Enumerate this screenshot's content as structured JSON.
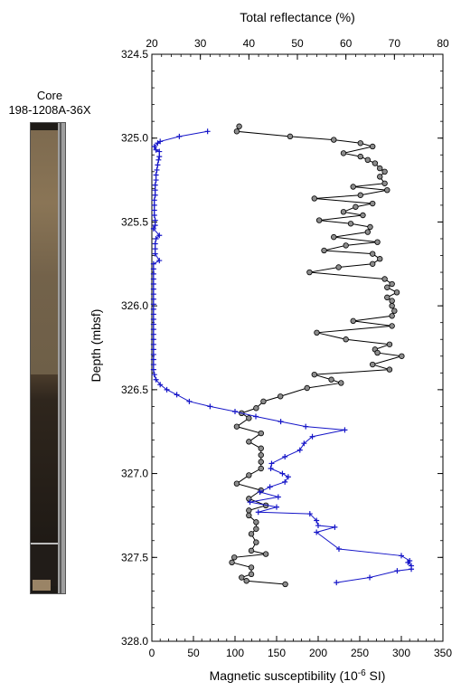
{
  "core": {
    "label_line1": "Core",
    "label_line2": "198-1208A-36X"
  },
  "chart_data": [
    {
      "type": "scatter",
      "title": "",
      "x_top_label": "Total reflectance (%)",
      "x_bottom_label": "Magnetic susceptibility (10⁻⁶ SI)",
      "ylabel": "Depth (mbsf)",
      "ylim": [
        324.5,
        328.0
      ],
      "y_inverted": true,
      "y_ticks": [
        "324.5",
        "325.0",
        "325.5",
        "326.0",
        "326.5",
        "327.0",
        "327.5",
        "328.0"
      ],
      "x_top_lim": [
        20,
        80
      ],
      "x_top_ticks": [
        "20",
        "30",
        "40",
        "50",
        "60",
        "70",
        "80"
      ],
      "x_bottom_lim": [
        0,
        350
      ],
      "x_bottom_ticks": [
        "0",
        "50",
        "100",
        "150",
        "200",
        "250",
        "300",
        "350"
      ],
      "grid": false,
      "series": [
        {
          "axis": "top",
          "marker": "circle",
          "color": "#000000",
          "marker_fill": "#8c8c8c",
          "points": [
            [
              38.0,
              324.93
            ],
            [
              37.5,
              324.96
            ],
            [
              48.5,
              324.99
            ],
            [
              57.5,
              325.01
            ],
            [
              63,
              325.03
            ],
            [
              65.5,
              325.05
            ],
            [
              59.5,
              325.09
            ],
            [
              63,
              325.11
            ],
            [
              64.5,
              325.13
            ],
            [
              66,
              325.15
            ],
            [
              67,
              325.18
            ],
            [
              68,
              325.2
            ],
            [
              67,
              325.23
            ],
            [
              68,
              325.27
            ],
            [
              61.5,
              325.29
            ],
            [
              68.5,
              325.31
            ],
            [
              63,
              325.34
            ],
            [
              53.5,
              325.36
            ],
            [
              65.5,
              325.39
            ],
            [
              62,
              325.41
            ],
            [
              59.5,
              325.44
            ],
            [
              63.5,
              325.46
            ],
            [
              54.5,
              325.49
            ],
            [
              61,
              325.51
            ],
            [
              65,
              325.53
            ],
            [
              64.5,
              325.56
            ],
            [
              57.5,
              325.59
            ],
            [
              66.5,
              325.62
            ],
            [
              60,
              325.64
            ],
            [
              55.5,
              325.67
            ],
            [
              65.5,
              325.69
            ],
            [
              67,
              325.72
            ],
            [
              65.5,
              325.75
            ],
            [
              58.5,
              325.77
            ],
            [
              52.5,
              325.8
            ],
            [
              68,
              325.84
            ],
            [
              69.5,
              325.87
            ],
            [
              68.5,
              325.89
            ],
            [
              70.5,
              325.92
            ],
            [
              68.5,
              325.95
            ],
            [
              69.5,
              325.97
            ],
            [
              69.5,
              326.0
            ],
            [
              70,
              326.03
            ],
            [
              69.5,
              326.06
            ],
            [
              61.5,
              326.09
            ],
            [
              69.5,
              326.12
            ],
            [
              54,
              326.16
            ],
            [
              60,
              326.2
            ],
            [
              69,
              326.23
            ],
            [
              66,
              326.26
            ],
            [
              66.5,
              326.28
            ],
            [
              71.5,
              326.3
            ],
            [
              65.5,
              326.35
            ],
            [
              69,
              326.38
            ],
            [
              53.5,
              326.41
            ],
            [
              57,
              326.44
            ],
            [
              59,
              326.46
            ],
            [
              52,
              326.49
            ],
            [
              46.5,
              326.54
            ],
            [
              43,
              326.57
            ],
            [
              41.5,
              326.61
            ],
            [
              38.5,
              326.64
            ],
            [
              40,
              326.67
            ],
            [
              37.5,
              326.72
            ],
            [
              42.5,
              326.76
            ],
            [
              40,
              326.81
            ],
            [
              42.5,
              326.85
            ],
            [
              42.5,
              326.89
            ],
            [
              42.5,
              326.93
            ],
            [
              42.5,
              326.97
            ],
            [
              40,
              327.01
            ],
            [
              37.5,
              327.06
            ],
            [
              42.5,
              327.1
            ],
            [
              40,
              327.15
            ],
            [
              43.5,
              327.19
            ],
            [
              40,
              327.22
            ],
            [
              40,
              327.25
            ],
            [
              41.5,
              327.29
            ],
            [
              41.5,
              327.33
            ],
            [
              40.5,
              327.36
            ],
            [
              41.5,
              327.41
            ],
            [
              40.5,
              327.46
            ],
            [
              43.5,
              327.48
            ],
            [
              37,
              327.5
            ],
            [
              36.5,
              327.53
            ],
            [
              40.5,
              327.56
            ],
            [
              40.5,
              327.6
            ],
            [
              38.5,
              327.62
            ],
            [
              39.5,
              327.64
            ],
            [
              47.5,
              327.66
            ]
          ]
        },
        {
          "axis": "bottom",
          "marker": "plus",
          "color": "#1515c8",
          "points": [
            [
              67,
              324.96
            ],
            [
              33,
              324.99
            ],
            [
              10,
              325.02
            ],
            [
              7,
              325.03
            ],
            [
              3,
              325.05
            ],
            [
              5,
              325.07
            ],
            [
              9,
              325.08
            ],
            [
              9,
              325.11
            ],
            [
              8,
              325.13
            ],
            [
              7,
              325.16
            ],
            [
              6,
              325.19
            ],
            [
              5,
              325.22
            ],
            [
              5,
              325.25
            ],
            [
              4,
              325.28
            ],
            [
              4,
              325.31
            ],
            [
              4,
              325.34
            ],
            [
              3,
              325.37
            ],
            [
              3,
              325.4
            ],
            [
              3,
              325.43
            ],
            [
              3,
              325.46
            ],
            [
              4,
              325.49
            ],
            [
              4,
              325.52
            ],
            [
              2,
              325.54
            ],
            [
              9,
              325.58
            ],
            [
              5,
              325.6
            ],
            [
              4,
              325.63
            ],
            [
              4,
              325.66
            ],
            [
              4,
              325.69
            ],
            [
              9,
              325.73
            ],
            [
              2,
              325.75
            ],
            [
              2,
              325.78
            ],
            [
              2,
              325.81
            ],
            [
              2,
              325.84
            ],
            [
              2,
              325.87
            ],
            [
              2,
              325.9
            ],
            [
              2,
              325.93
            ],
            [
              2,
              325.96
            ],
            [
              2,
              325.99
            ],
            [
              2,
              326.02
            ],
            [
              2,
              326.05
            ],
            [
              2,
              326.08
            ],
            [
              2,
              326.11
            ],
            [
              2,
              326.14
            ],
            [
              2,
              326.17
            ],
            [
              2,
              326.2
            ],
            [
              2,
              326.23
            ],
            [
              2,
              326.26
            ],
            [
              2,
              326.29
            ],
            [
              2,
              326.32
            ],
            [
              2,
              326.35
            ],
            [
              2,
              326.38
            ],
            [
              3,
              326.41
            ],
            [
              5,
              326.44
            ],
            [
              10,
              326.47
            ],
            [
              18,
              326.5
            ],
            [
              30,
              326.53
            ],
            [
              45,
              326.57
            ],
            [
              70,
              326.6
            ],
            [
              100,
              326.63
            ],
            [
              125,
              326.66
            ],
            [
              155,
              326.69
            ],
            [
              185,
              326.72
            ],
            [
              232,
              326.74
            ],
            [
              193,
              326.78
            ],
            [
              183,
              326.82
            ],
            [
              178,
              326.86
            ],
            [
              160,
              326.9
            ],
            [
              144,
              326.94
            ],
            [
              143,
              326.97
            ],
            [
              157,
              327.0
            ],
            [
              164,
              327.02
            ],
            [
              160,
              327.05
            ],
            [
              142,
              327.08
            ],
            [
              130,
              327.11
            ],
            [
              152,
              327.14
            ],
            [
              118,
              327.17
            ],
            [
              150,
              327.2
            ],
            [
              128,
              327.23
            ],
            [
              190,
              327.24
            ],
            [
              198,
              327.28
            ],
            [
              200,
              327.31
            ],
            [
              220,
              327.32
            ],
            [
              198,
              327.35
            ],
            [
              225,
              327.45
            ],
            [
              300,
              327.49
            ],
            [
              310,
              327.52
            ],
            [
              308,
              327.53
            ],
            [
              312,
              327.55
            ],
            [
              312,
              327.57
            ],
            [
              295,
              327.58
            ],
            [
              262,
              327.62
            ],
            [
              222,
              327.65
            ]
          ]
        }
      ]
    }
  ]
}
